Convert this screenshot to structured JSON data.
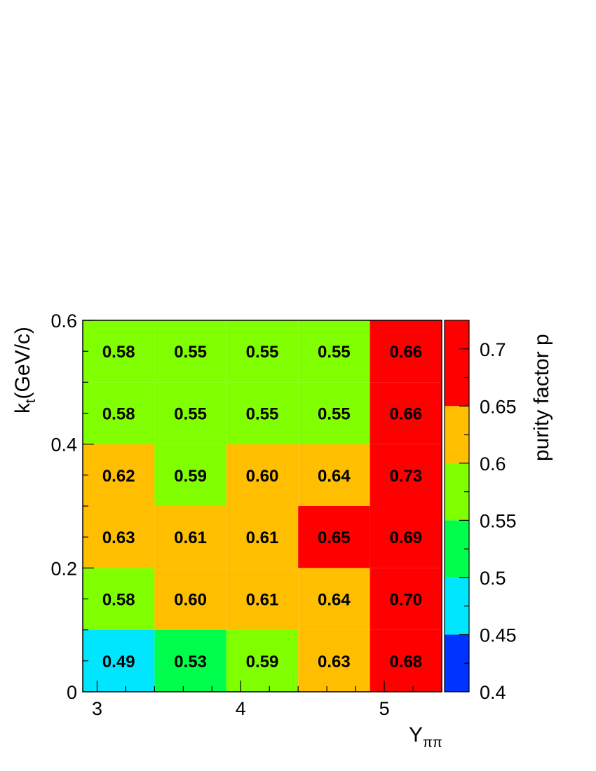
{
  "chart_data": {
    "type": "heatmap",
    "xlabel": "Y",
    "xlabel_sub": "ππ",
    "ylabel": "k",
    "ylabel_sub": "t",
    "ylabel_suffix": "(GeV/c)",
    "zlabel": "purity factor p",
    "x_bin_edges": [
      2.9,
      3.4,
      3.9,
      4.4,
      4.9,
      5.4
    ],
    "y_bin_edges": [
      0,
      0.1,
      0.2,
      0.3,
      0.4,
      0.5,
      0.6
    ],
    "xlim": [
      2.9,
      5.4
    ],
    "ylim": [
      0,
      0.6
    ],
    "zlim": [
      0.4,
      0.725
    ],
    "x_ticks": [
      "3",
      "4",
      "5"
    ],
    "x_tick_values": [
      3,
      4,
      5
    ],
    "y_ticks": [
      "0",
      "0.2",
      "0.4",
      "0.6"
    ],
    "y_tick_values": [
      0,
      0.2,
      0.4,
      0.6
    ],
    "z_ticks": [
      "0.4",
      "0.45",
      "0.5",
      "0.55",
      "0.6",
      "0.65",
      "0.7"
    ],
    "z_tick_values": [
      0.4,
      0.45,
      0.5,
      0.55,
      0.6,
      0.65,
      0.7
    ],
    "palette": [
      {
        "from": 0.4,
        "to": 0.45,
        "color": "#0033ff"
      },
      {
        "from": 0.45,
        "to": 0.5,
        "color": "#00e6ff"
      },
      {
        "from": 0.5,
        "to": 0.55,
        "color": "#00ff4c"
      },
      {
        "from": 0.55,
        "to": 0.6,
        "color": "#80ff00"
      },
      {
        "from": 0.6,
        "to": 0.65,
        "color": "#ffbf00"
      },
      {
        "from": 0.65,
        "to": 0.725,
        "color": "#ff0000"
      }
    ],
    "rows": [
      {
        "values": [
          0.49,
          0.53,
          0.59,
          0.63,
          0.68
        ],
        "labels": [
          "0.49",
          "0.53",
          "0.59",
          "0.63",
          "0.68"
        ]
      },
      {
        "values": [
          0.58,
          0.6,
          0.61,
          0.64,
          0.7
        ],
        "labels": [
          "0.58",
          "0.60",
          "0.61",
          "0.64",
          "0.70"
        ]
      },
      {
        "values": [
          0.63,
          0.61,
          0.61,
          0.65,
          0.69
        ],
        "labels": [
          "0.63",
          "0.61",
          "0.61",
          "0.65",
          "0.69"
        ]
      },
      {
        "values": [
          0.62,
          0.59,
          0.6,
          0.64,
          0.73
        ],
        "labels": [
          "0.62",
          "0.59",
          "0.60",
          "0.64",
          "0.73"
        ]
      },
      {
        "values": [
          0.58,
          0.55,
          0.55,
          0.55,
          0.66
        ],
        "labels": [
          "0.58",
          "0.55",
          "0.55",
          "0.55",
          "0.66"
        ]
      },
      {
        "values": [
          0.58,
          0.55,
          0.55,
          0.55,
          0.66
        ],
        "labels": [
          "0.58",
          "0.55",
          "0.55",
          "0.55",
          "0.66"
        ]
      }
    ]
  }
}
